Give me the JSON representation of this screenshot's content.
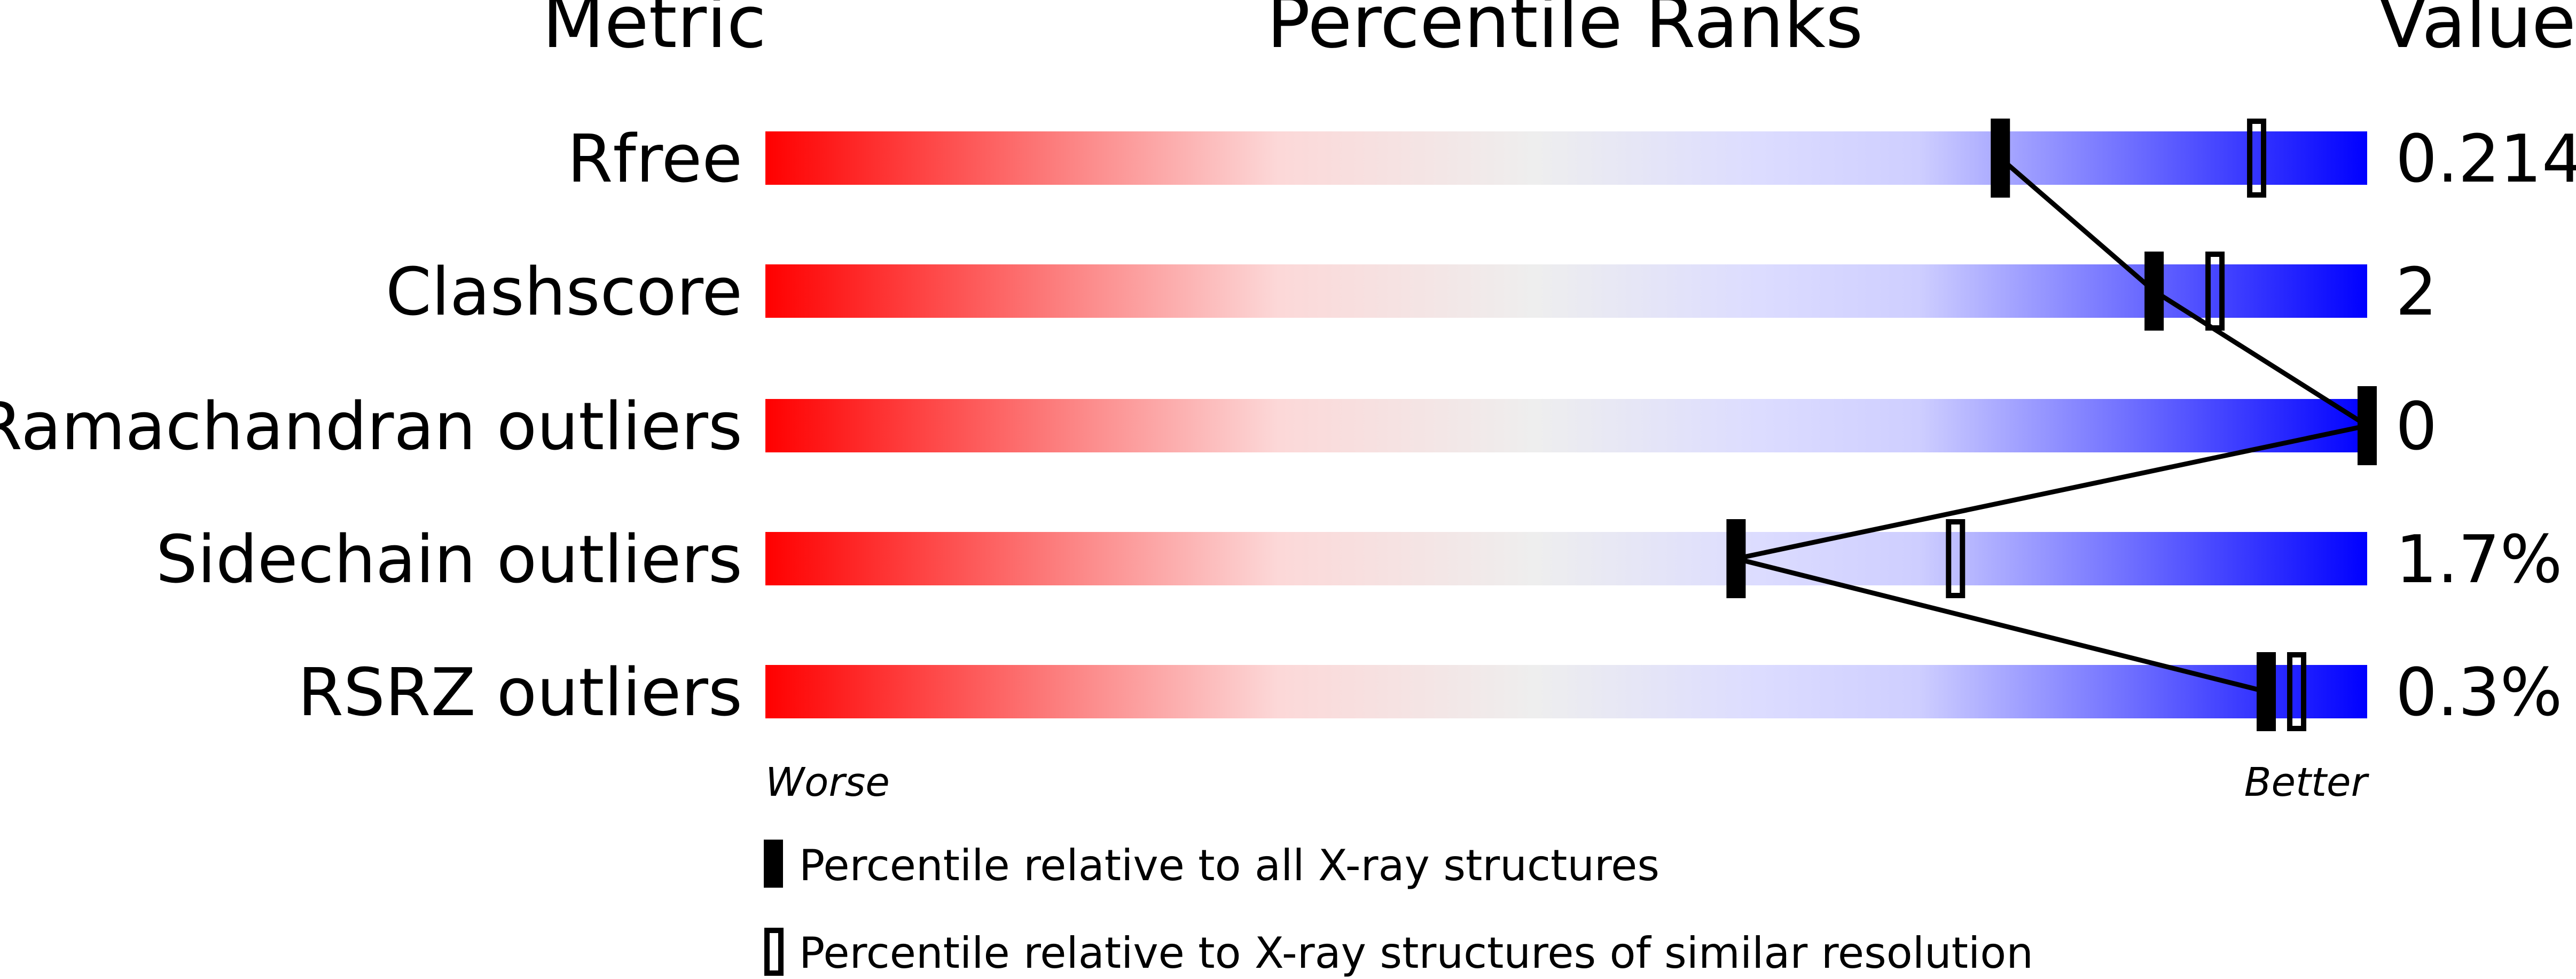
{
  "chart_data": {
    "type": "bar",
    "headers": {
      "metric": "Metric",
      "percentile": "Percentile Ranks",
      "value": "Value"
    },
    "xlim": [
      0,
      100
    ],
    "rows": [
      {
        "metric": "Rfree",
        "value": "0.214",
        "percentile_all": 77.1,
        "percentile_similar": 93.1
      },
      {
        "metric": "Clashscore",
        "value": "2",
        "percentile_all": 86.7,
        "percentile_similar": 90.5
      },
      {
        "metric": "Ramachandran outliers",
        "value": "0",
        "percentile_all": 100,
        "percentile_similar": null
      },
      {
        "metric": "Sidechain outliers",
        "value": "1.7%",
        "percentile_all": 60.6,
        "percentile_similar": 74.3
      },
      {
        "metric": "RSRZ outliers",
        "value": "0.3%",
        "percentile_all": 93.7,
        "percentile_similar": 95.6
      }
    ],
    "axis": {
      "worse": "Worse",
      "better": "Better"
    },
    "legend": {
      "all": "Percentile relative to all X-ray structures",
      "similar": "Percentile relative to X-ray structures of similar resolution"
    },
    "colors": {
      "worse": "#ff0000",
      "middle": "#eeeeee",
      "better": "#0000ff",
      "marker": "#000000"
    }
  }
}
